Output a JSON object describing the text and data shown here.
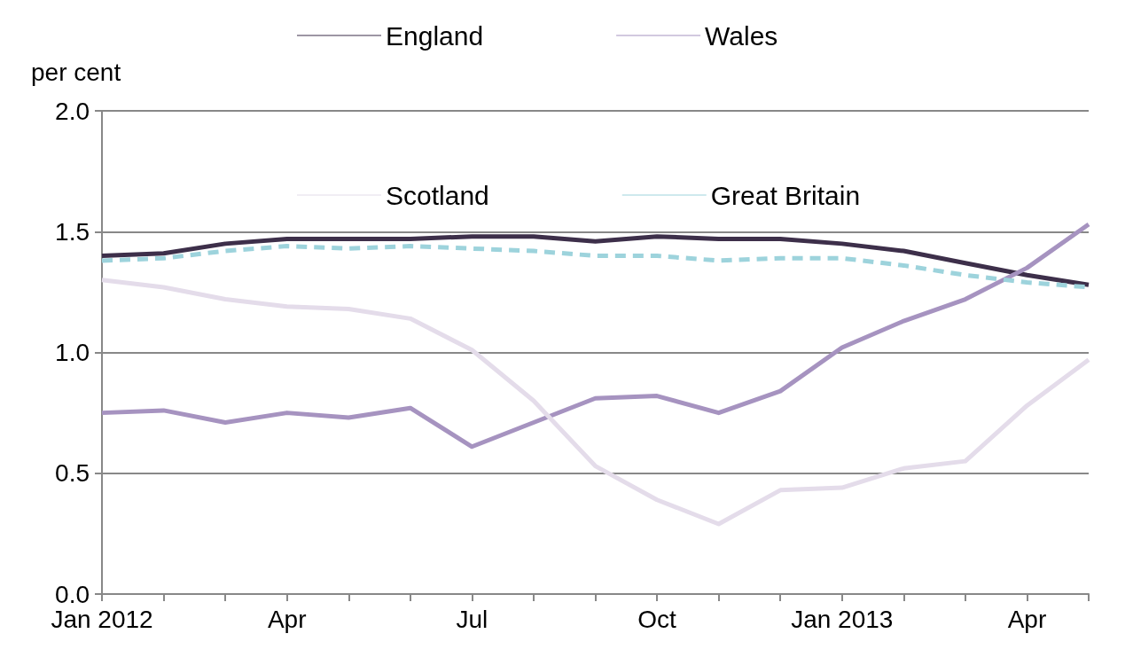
{
  "chart_data": {
    "type": "line",
    "ylabel": "per cent",
    "categories": [
      "Jan 2012",
      null,
      null,
      "Apr",
      null,
      null,
      "Jul",
      null,
      null,
      "Oct",
      null,
      null,
      "Jan 2013",
      null,
      null,
      "Apr",
      null
    ],
    "series": [
      {
        "name": "England",
        "color": "#3d2f4a",
        "values": [
          1.4,
          1.41,
          1.45,
          1.47,
          1.47,
          1.47,
          1.48,
          1.48,
          1.46,
          1.48,
          1.47,
          1.47,
          1.45,
          1.42,
          1.37,
          1.32,
          1.28
        ]
      },
      {
        "name": "Wales",
        "color": "#a693c0",
        "values": [
          0.75,
          0.76,
          0.71,
          0.75,
          0.73,
          0.77,
          0.61,
          0.71,
          0.81,
          0.82,
          0.75,
          0.84,
          1.02,
          1.13,
          1.22,
          1.35,
          1.53
        ]
      },
      {
        "name": "Scotland",
        "color": "#e4dcea",
        "values": [
          1.3,
          1.27,
          1.22,
          1.19,
          1.18,
          1.14,
          1.01,
          0.8,
          0.53,
          0.39,
          0.29,
          0.43,
          0.44,
          0.52,
          0.55,
          0.78,
          0.97
        ]
      },
      {
        "name": "Great Britain",
        "color": "#9dd3dc",
        "line_style": "dashed",
        "values": [
          1.38,
          1.39,
          1.42,
          1.44,
          1.43,
          1.44,
          1.43,
          1.42,
          1.4,
          1.4,
          1.38,
          1.39,
          1.39,
          1.36,
          1.32,
          1.29,
          1.27
        ]
      }
    ],
    "ylim": [
      0,
      2
    ],
    "yticks": [
      {
        "value": 0,
        "label": "0.0"
      },
      {
        "value": 0.5,
        "label": "0.5"
      },
      {
        "value": 1,
        "label": "1.0"
      },
      {
        "value": 1.5,
        "label": "1.5"
      },
      {
        "value": 2,
        "label": "2.0"
      }
    ],
    "grid": "y",
    "legend": "top",
    "marker": "none",
    "line_style": "solid"
  }
}
